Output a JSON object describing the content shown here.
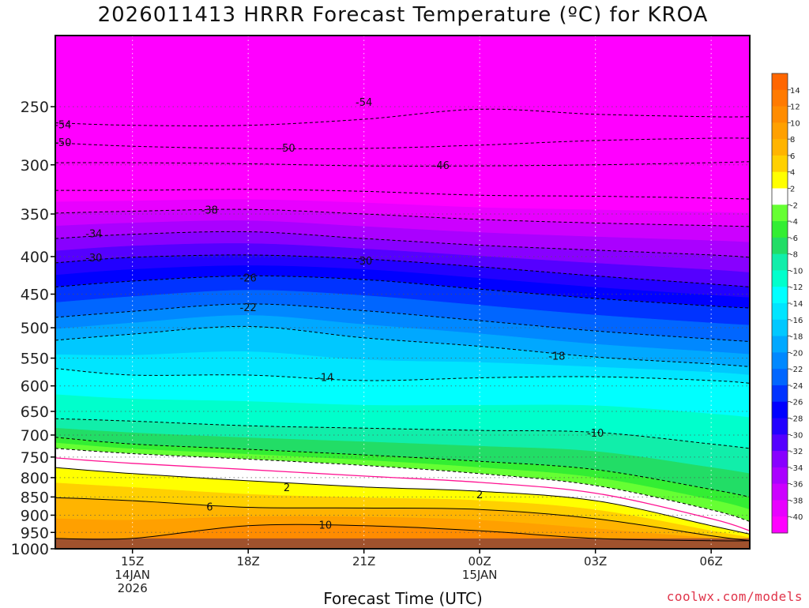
{
  "header": {
    "title": "2026011413 HRRR Forecast Temperature (ºC) for KROA"
  },
  "footer": {
    "x_axis_label": "Forecast Time (UTC)",
    "credit": "coolwx.com/models"
  },
  "chart_data": {
    "type": "contour",
    "title": "2026011413 HRRR Forecast Temperature (ºC) for KROA",
    "xlabel": "Forecast Time (UTC)",
    "ylabel": "",
    "y_axis": {
      "scale": "log",
      "inverted": true,
      "ylim": [
        1000,
        200
      ],
      "ticks": [
        250,
        300,
        350,
        400,
        450,
        500,
        550,
        600,
        650,
        700,
        750,
        800,
        850,
        900,
        950,
        1000
      ]
    },
    "x_axis": {
      "xlim": [
        "2026-01-14 13Z",
        "2026-01-15 07Z"
      ],
      "ticks": [
        {
          "time": "2026-01-14 15Z",
          "label": [
            "15Z",
            "14JAN",
            "2026"
          ]
        },
        {
          "time": "2026-01-14 18Z",
          "label": [
            "18Z"
          ]
        },
        {
          "time": "2026-01-14 21Z",
          "label": [
            "21Z"
          ]
        },
        {
          "time": "2026-01-15 00Z",
          "label": [
            "00Z",
            "15JAN"
          ]
        },
        {
          "time": "2026-01-15 03Z",
          "label": [
            "03Z"
          ]
        },
        {
          "time": "2026-01-15 06Z",
          "label": [
            "06Z"
          ]
        }
      ]
    },
    "grid": true,
    "colorbar": {
      "placement": "right",
      "labels": [
        14,
        12,
        10,
        8,
        6,
        4,
        2,
        -2,
        -4,
        -6,
        -8,
        -10,
        -12,
        -14,
        -16,
        -18,
        -20,
        -22,
        -24,
        -26,
        -28,
        -30,
        -32,
        -34,
        -36,
        -38,
        -40
      ],
      "colors": [
        "#ff6600",
        "#ff7a00",
        "#ff8c00",
        "#ffa000",
        "#ffb400",
        "#ffd000",
        "#ffff00",
        "#ffffff",
        "#66ff33",
        "#33ee33",
        "#22dd66",
        "#11eeaa",
        "#00ffcc",
        "#00ffff",
        "#00e5ff",
        "#00c8ff",
        "#00a8ff",
        "#0088ff",
        "#0066ff",
        "#0033ff",
        "#0000ff",
        "#2200ff",
        "#5500ff",
        "#8800ff",
        "#aa00ff",
        "#cc00ff",
        "#e800ff",
        "#ff00ff"
      ]
    },
    "ground": {
      "pressure": 968,
      "color": "#a0522d"
    },
    "isotherms_time_hours": [
      0,
      2,
      5,
      8,
      11,
      14,
      17,
      18
    ],
    "isotherms": [
      {
        "temp": -54,
        "p": [
          263,
          265,
          265,
          260,
          252,
          256,
          258,
          258
        ]
      },
      {
        "temp": -50,
        "p": [
          280,
          283,
          285,
          285,
          282,
          278,
          276,
          276
        ]
      },
      {
        "temp": -46,
        "p": [
          298,
          298,
          299,
          301,
          301,
          300,
          298,
          297
        ]
      },
      {
        "temp": -42,
        "p": [
          325,
          325,
          324,
          326,
          330,
          331,
          333,
          334
        ]
      },
      {
        "temp": -38,
        "p": [
          349,
          347,
          345,
          350,
          356,
          360,
          363,
          364
        ]
      },
      {
        "temp": -34,
        "p": [
          378,
          373,
          370,
          378,
          386,
          392,
          398,
          401
        ]
      },
      {
        "temp": -30,
        "p": [
          408,
          401,
          398,
          403,
          413,
          425,
          436,
          440
        ]
      },
      {
        "temp": -26,
        "p": [
          440,
          432,
          425,
          430,
          443,
          456,
          467,
          470
        ]
      },
      {
        "temp": -22,
        "p": [
          484,
          475,
          464,
          474,
          489,
          505,
          518,
          522
        ]
      },
      {
        "temp": -18,
        "p": [
          520,
          510,
          498,
          516,
          530,
          548,
          560,
          565
        ]
      },
      {
        "temp": -14,
        "p": [
          568,
          580,
          580,
          590,
          585,
          583,
          590,
          595
        ]
      },
      {
        "temp": -10,
        "p": [
          665,
          670,
          680,
          685,
          690,
          694,
          720,
          730
        ]
      },
      {
        "temp": -6,
        "p": [
          705,
          720,
          732,
          745,
          760,
          780,
          830,
          850
        ]
      },
      {
        "temp": -2,
        "p": [
          730,
          742,
          755,
          770,
          790,
          820,
          885,
          918
        ]
      },
      {
        "temp": 2,
        "p": [
          775,
          790,
          808,
          824,
          835,
          860,
          930,
          955
        ]
      },
      {
        "temp": 6,
        "p": [
          852,
          860,
          878,
          880,
          884,
          910,
          960,
          975
        ]
      },
      {
        "temp": 10,
        "p": [
          968,
          968,
          930,
          930,
          945,
          968,
          975,
          975
        ]
      }
    ],
    "freezing_line": {
      "temp": 0,
      "color": "#ff1493",
      "p": [
        752,
        765,
        780,
        796,
        812,
        840,
        910,
        945
      ]
    },
    "contour_labels": [
      {
        "temp": -54,
        "time_hours": 8.0,
        "p": 247
      },
      {
        "temp": -54,
        "time_hours": 0.2,
        "p": 265
      },
      {
        "temp": -50,
        "time_hours": 0.2,
        "p": 280
      },
      {
        "temp": -50,
        "time_hours": 6.0,
        "p": 285
      },
      {
        "temp": -46,
        "time_hours": 10.0,
        "p": 301
      },
      {
        "temp": -38,
        "time_hours": 4.0,
        "p": 346
      },
      {
        "temp": -34,
        "time_hours": 1.0,
        "p": 373
      },
      {
        "temp": -30,
        "time_hours": 1.0,
        "p": 402
      },
      {
        "temp": -30,
        "time_hours": 8.0,
        "p": 406
      },
      {
        "temp": -26,
        "time_hours": 5.0,
        "p": 428
      },
      {
        "temp": -22,
        "time_hours": 5.0,
        "p": 470
      },
      {
        "temp": -18,
        "time_hours": 13.0,
        "p": 547
      },
      {
        "temp": -14,
        "time_hours": 7.0,
        "p": 585
      },
      {
        "temp": -10,
        "time_hours": 14.0,
        "p": 697
      },
      {
        "temp": 2,
        "time_hours": 6.0,
        "p": 826
      },
      {
        "temp": 2,
        "time_hours": 11.0,
        "p": 845
      },
      {
        "temp": 6,
        "time_hours": 4.0,
        "p": 878
      },
      {
        "temp": 10,
        "time_hours": 7.0,
        "p": 930
      }
    ]
  }
}
